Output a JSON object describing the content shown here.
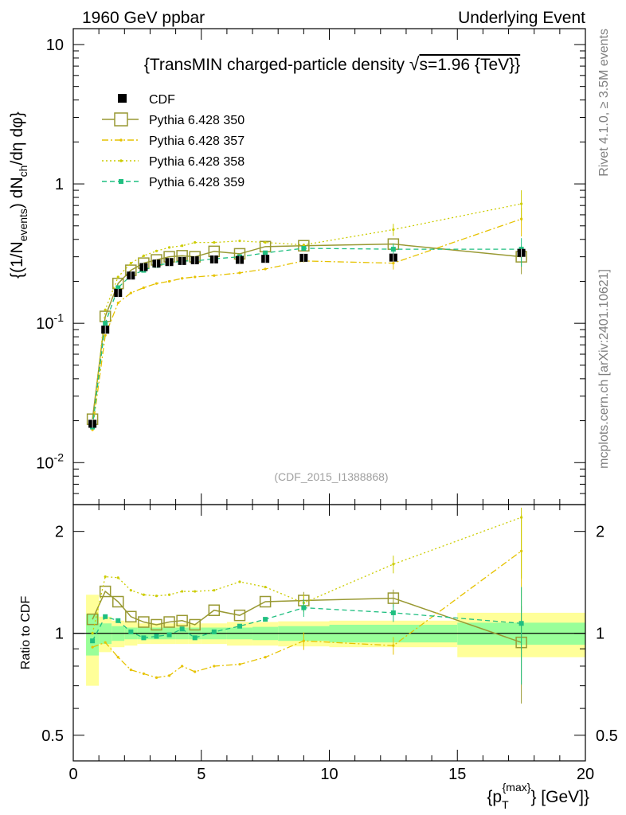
{
  "header": {
    "left": "1960 GeV ppbar",
    "right": "Underlying Event"
  },
  "side_labels": {
    "rivet": "Rivet 4.1.0, ≥ 3.5M events",
    "mcplots": "mcplots.cern.ch [arXiv:2401.10621]"
  },
  "colors": {
    "cdf": "#000000",
    "p350": "#999933",
    "p357": "#e6c200",
    "p358": "#cccc00",
    "p359": "#1fbf80",
    "band_inner": "#99ff99",
    "band_outer": "#ffff99"
  },
  "chart_data": [
    {
      "type": "line",
      "name": "main",
      "title": "{TransMIN charged-particle density √s=1.96 {TeV}}",
      "title_parts": {
        "pre": "{TransMIN charged-particle density ",
        "sqrt": "√",
        "post": "s=1.96 {TeV}}"
      },
      "ylabel": "{(1/N_events) dN_ch/dη dφ}",
      "ylabel_parts": {
        "a": "{(1/N",
        "sub1": "events",
        "b": ") dN",
        "sub2": "ch",
        "c": "/dη  dφ}"
      },
      "yscale": "log",
      "ylim": [
        0.005,
        13
      ],
      "xlim": [
        0,
        20
      ],
      "ytick_labels": [
        {
          "value": 0.01,
          "base": "10",
          "exp": "-2"
        },
        {
          "value": 0.1,
          "base": "10",
          "exp": "-1"
        },
        {
          "value": 1,
          "base": "1",
          "exp": ""
        },
        {
          "value": 10,
          "base": "10",
          "exp": ""
        }
      ],
      "watermark": "(CDF_2015_I1388868)",
      "legend_position": "top-left",
      "x": [
        0.75,
        1.25,
        1.75,
        2.25,
        2.75,
        3.25,
        3.75,
        4.25,
        4.75,
        5.5,
        6.5,
        7.5,
        9.0,
        12.5,
        17.5
      ],
      "series": [
        {
          "name": "CDF",
          "style": "data",
          "values": [
            0.019,
            0.09,
            0.165,
            0.22,
            0.253,
            0.268,
            0.275,
            0.28,
            0.283,
            0.287,
            0.285,
            0.29,
            0.295,
            0.296,
            0.32
          ]
        },
        {
          "name": "Pythia 6.428 350",
          "style": "open-square",
          "values": [
            0.0205,
            0.112,
            0.193,
            0.24,
            0.27,
            0.285,
            0.3,
            0.305,
            0.3,
            0.328,
            0.315,
            0.355,
            0.36,
            0.37,
            0.3
          ]
        },
        {
          "name": "Pythia 6.428 357",
          "style": "dashdot",
          "values": [
            0.0172,
            0.082,
            0.14,
            0.165,
            0.18,
            0.193,
            0.2,
            0.21,
            0.215,
            0.22,
            0.23,
            0.245,
            0.28,
            0.27,
            0.56
          ]
        },
        {
          "name": "Pythia 6.428 358",
          "style": "dotted",
          "values": [
            0.0185,
            0.125,
            0.215,
            0.27,
            0.305,
            0.33,
            0.35,
            0.36,
            0.38,
            0.38,
            0.39,
            0.38,
            0.365,
            0.47,
            0.72
          ]
        },
        {
          "name": "Pythia 6.428 359",
          "style": "dashed",
          "values": [
            0.018,
            0.1,
            0.18,
            0.22,
            0.24,
            0.26,
            0.27,
            0.28,
            0.28,
            0.29,
            0.3,
            0.32,
            0.345,
            0.34,
            0.34
          ]
        }
      ]
    },
    {
      "type": "line",
      "name": "ratio",
      "ylabel": "Ratio to CDF",
      "xlabel": "{p_T^{max}} [GeV]",
      "xlabel_parts": {
        "a": "{p",
        "sub": "T",
        "sup": "{max}",
        "b": "} [GeV]}"
      },
      "yscale": "log",
      "ylim": [
        0.42,
        2.4
      ],
      "xlim": [
        0,
        20
      ],
      "xtick_labels": [
        "0",
        "5",
        "10",
        "15",
        "20"
      ],
      "ytick_labels": [
        {
          "value": 0.5,
          "label": "0.5"
        },
        {
          "value": 1,
          "label": "1"
        },
        {
          "value": 2,
          "label": "2"
        }
      ],
      "reference": 1,
      "bands": {
        "edges": [
          0.5,
          1.0,
          1.5,
          2.0,
          2.5,
          3.0,
          3.5,
          4.0,
          4.5,
          5.0,
          6.0,
          7.0,
          8.0,
          10.0,
          15.0,
          20.0
        ],
        "inner": [
          0.14,
          0.07,
          0.05,
          0.04,
          0.04,
          0.04,
          0.04,
          0.04,
          0.04,
          0.04,
          0.04,
          0.045,
          0.05,
          0.06,
          0.075
        ],
        "outer": [
          0.3,
          0.12,
          0.09,
          0.08,
          0.07,
          0.07,
          0.07,
          0.07,
          0.07,
          0.07,
          0.08,
          0.08,
          0.085,
          0.09,
          0.15
        ]
      },
      "series": [
        {
          "name": "Pythia 6.428 350",
          "values": [
            1.1,
            1.33,
            1.24,
            1.12,
            1.08,
            1.06,
            1.08,
            1.09,
            1.06,
            1.17,
            1.13,
            1.24,
            1.25,
            1.27,
            0.94
          ]
        },
        {
          "name": "Pythia 6.428 357",
          "values": [
            0.91,
            0.94,
            0.85,
            0.78,
            0.76,
            0.74,
            0.75,
            0.8,
            0.77,
            0.8,
            0.81,
            0.85,
            0.95,
            0.92,
            1.75
          ]
        },
        {
          "name": "Pythia 6.428 358",
          "values": [
            1.0,
            1.47,
            1.46,
            1.34,
            1.3,
            1.29,
            1.3,
            1.33,
            1.33,
            1.34,
            1.42,
            1.37,
            1.23,
            1.6,
            2.2
          ]
        },
        {
          "name": "Pythia 6.428 359",
          "values": [
            0.95,
            1.12,
            1.09,
            1.01,
            0.97,
            0.98,
            0.99,
            1.03,
            0.97,
            1.01,
            1.05,
            1.1,
            1.19,
            1.15,
            1.07
          ]
        }
      ]
    }
  ]
}
